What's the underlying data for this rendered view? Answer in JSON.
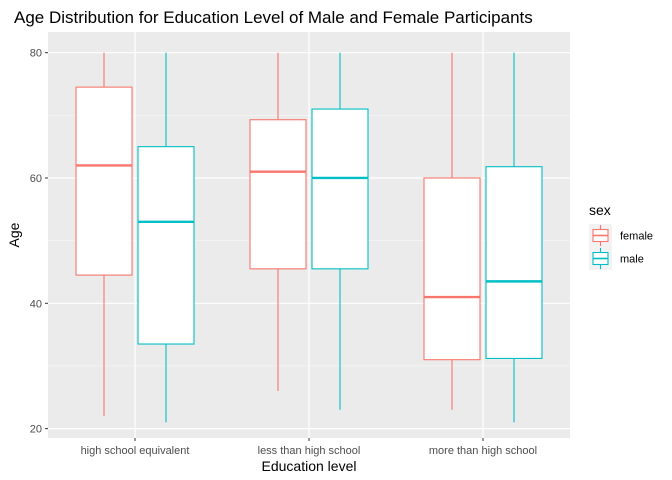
{
  "chart_data": {
    "type": "boxplot",
    "title": "Age Distribution for Education Level of Male and Female Participants",
    "xlabel": "Education level",
    "ylabel": "Age",
    "categories": [
      "high school equivalent",
      "less than high school",
      "more than high school"
    ],
    "ylim": [
      18.5,
      83.3
    ],
    "yticks": [
      20,
      40,
      60,
      80
    ],
    "grid": true,
    "legend": {
      "title": "sex",
      "position": "right"
    },
    "series": [
      {
        "name": "female",
        "color": "#F8766D",
        "boxes": [
          {
            "min": 22,
            "q1": 44.5,
            "median": 62,
            "q3": 74.5,
            "max": 80
          },
          {
            "min": 26,
            "q1": 45.5,
            "median": 61,
            "q3": 69.3,
            "max": 80
          },
          {
            "min": 23,
            "q1": 31,
            "median": 41,
            "q3": 60,
            "max": 80
          }
        ]
      },
      {
        "name": "male",
        "color": "#00BFC4",
        "boxes": [
          {
            "min": 21,
            "q1": 33.5,
            "median": 53,
            "q3": 65,
            "max": 80
          },
          {
            "min": 23,
            "q1": 45.5,
            "median": 60,
            "q3": 71,
            "max": 80
          },
          {
            "min": 21,
            "q1": 31.2,
            "median": 43.5,
            "q3": 61.8,
            "max": 80
          }
        ]
      }
    ]
  }
}
